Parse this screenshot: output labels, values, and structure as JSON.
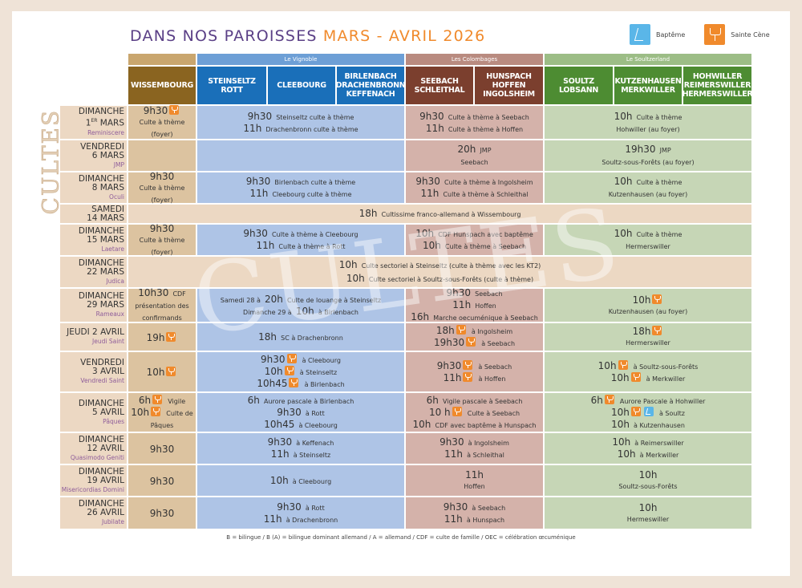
{
  "title": {
    "main": "DANS NOS PAROISSES",
    "accent": "MARS - AVRIL 2026"
  },
  "legend": {
    "bapteme": "Baptême",
    "sainte_cene": "Sainte Cène"
  },
  "side_label": "CULTES",
  "watermark": "CULTES",
  "colors": {
    "wissembourg": "#dcc3a0",
    "vignoble": "#aec4e6",
    "colombages": "#d4b2aa",
    "soultzerland": "#c6d6b6",
    "sainte_cene": "#f08a2c",
    "bapteme": "#5ab6e8"
  },
  "sectors": {
    "vignoble": "Le Vignoble",
    "colombages": "Les Colombages",
    "soultzerland": "Le Soultzerland"
  },
  "headers": [
    {
      "label": "WISSEMBOURG",
      "bg": "#8a6420"
    },
    {
      "label": "STEINSELTZ ROTT",
      "bg": "#1a6fb9"
    },
    {
      "label": "CLEEBOURG",
      "bg": "#1a6fb9"
    },
    {
      "label": "BIRLENBACH DRACHENBRONN KEFFENACH",
      "bg": "#1a6fb9"
    },
    {
      "label": "SEEBACH SCHLEITHAL",
      "bg": "#7b3f2e"
    },
    {
      "label": "HUNSPACH HOFFEN INGOLSHEIM",
      "bg": "#7b3f2e"
    },
    {
      "label": "SOULTZ LOBSANN",
      "bg": "#4d8c32"
    },
    {
      "label": "KUTZENHAUSEN MERKWILLER",
      "bg": "#4d8c32"
    },
    {
      "label": "HOHWILLER REIMERSWILLER HERMERSWILLER",
      "bg": "#4d8c32"
    }
  ],
  "rows": [
    {
      "day": "DIMANCHE",
      "date": "1",
      "sup": "ER",
      "date_rest": " MARS",
      "lit": "Reminiscere",
      "cells": {
        "w": [
          {
            "t": "9h30",
            "i": [
              "sc"
            ]
          },
          {
            "x": "Culte à thème"
          },
          {
            "x": "(foyer)"
          }
        ],
        "v": [
          {
            "t": "9h30",
            "x": "Steinseltz culte à thème"
          },
          {
            "t": "11h",
            "x": "Drachenbronn culte à thème"
          }
        ],
        "c": [
          {
            "t": "9h30",
            "x": "Culte à thème à Seebach"
          },
          {
            "t": "11h",
            "x": "Culte à thème à Hoffen"
          }
        ],
        "s": [
          {
            "t": "10h",
            "x": "Culte à thème"
          },
          {
            "x": "Hohwiller (au foyer)"
          }
        ]
      }
    },
    {
      "day": "VENDREDI",
      "date": "6 MARS",
      "lit": "JMP",
      "cells": {
        "w": [],
        "v": [],
        "c": [
          {
            "t": "20h",
            "x": "JMP"
          },
          {
            "x": "Seebach"
          }
        ],
        "s": [
          {
            "t": "19h30",
            "x": "JMP"
          },
          {
            "x": "Soultz-sous-Forêts (au foyer)"
          }
        ]
      }
    },
    {
      "day": "DIMANCHE",
      "date": "8 MARS",
      "lit": "Oculi",
      "cells": {
        "w": [
          {
            "t": "9h30"
          },
          {
            "x": "Culte à thème"
          },
          {
            "x": "(foyer)"
          }
        ],
        "v": [
          {
            "t": "9h30",
            "x": "Birlenbach culte à thème"
          },
          {
            "t": "11h",
            "x": "Cleebourg culte à thème"
          }
        ],
        "c": [
          {
            "t": "9h30",
            "x": "Culte à thème à Ingolsheim"
          },
          {
            "t": "11h",
            "x": "Culte à thème à Schleithal"
          }
        ],
        "s": [
          {
            "t": "10h",
            "x": "Culte à thème"
          },
          {
            "x": "Kutzenhausen (au foyer)"
          }
        ]
      }
    },
    {
      "day": "SAMEDI",
      "date": "14 MARS",
      "cells": {
        "all": [
          {
            "t": "18h",
            "x": "Cultissime franco-allemand à Wissembourg"
          }
        ]
      }
    },
    {
      "day": "DIMANCHE",
      "date": "15 MARS",
      "lit": "Laetare",
      "cells": {
        "w": [
          {
            "t": "9h30"
          },
          {
            "x": "Culte à thème"
          },
          {
            "x": "(foyer)"
          }
        ],
        "v": [
          {
            "t": "9h30",
            "x": "Culte à thème à Cleebourg"
          },
          {
            "t": "11h",
            "x": "Culte à thème à Rott"
          }
        ],
        "c": [
          {
            "t": "10h",
            "x": "CDF Hunspach avec baptême"
          },
          {
            "t": "10h",
            "x": "Culte à thème à Seebach"
          }
        ],
        "s": [
          {
            "t": "10h",
            "x": "Culte à thème"
          },
          {
            "x": "Hermerswiller"
          }
        ]
      }
    },
    {
      "day": "DIMANCHE",
      "date": "22 MARS",
      "lit": "Judica",
      "cells": {
        "all": [
          {
            "t": "10h",
            "x": "Culte sectoriel à Steinseltz (culte à thème avec les KT2)"
          },
          {
            "t": "10h",
            "x": "Culte sectoriel à Soultz-sous-Forêts (culte à thème)"
          }
        ]
      }
    },
    {
      "day": "DIMANCHE",
      "date": "29 MARS",
      "lit": "Rameaux",
      "cells": {
        "w": [
          {
            "t": "10h30",
            "x": "CDF"
          },
          {
            "x": "présentation des"
          },
          {
            "x": "confirmands"
          }
        ],
        "v": [
          {
            "p": "Samedi 28 à",
            "t": "20h",
            "x": "Culte de louange à Steinseltz"
          },
          {
            "p": "Dimanche 29 à",
            "t": "10h",
            "x": "à Birlenbach"
          }
        ],
        "c": [
          {
            "t": "9h30",
            "x": "Seebach"
          },
          {
            "t": "11h",
            "x": "Hoffen"
          },
          {
            "t": "16h",
            "x": "Marche oecuménique à Seebach"
          }
        ],
        "s": [
          {
            "t": "10h",
            "i": [
              "sc"
            ]
          },
          {
            "x": "Kutzenhausen (au foyer)"
          }
        ]
      }
    },
    {
      "day": "JEUDI 2 AVRIL",
      "date": "",
      "lit": "Jeudi Saint",
      "cells": {
        "w": [
          {
            "t": "19h",
            "i": [
              "sc"
            ]
          }
        ],
        "v": [
          {
            "t": "18h",
            "x": "SC à Drachenbronn"
          }
        ],
        "c": [
          {
            "t": "18h",
            "i": [
              "sc"
            ],
            "x": "à Ingolsheim"
          },
          {
            "t": "19h30",
            "i": [
              "sc"
            ],
            "x": "à Seebach"
          }
        ],
        "s": [
          {
            "t": "18h",
            "i": [
              "sc"
            ]
          },
          {
            "x": "Hermerswiller"
          }
        ]
      }
    },
    {
      "day": "VENDREDI",
      "date": "3 AVRIL",
      "lit": "Vendredi Saint",
      "cells": {
        "w": [
          {
            "t": "10h",
            "i": [
              "sc"
            ]
          }
        ],
        "v": [
          {
            "t": "9h30",
            "i": [
              "sc"
            ],
            "x": "à Cleebourg"
          },
          {
            "t": "10h",
            "i": [
              "sc"
            ],
            "x": "à Steinseltz"
          },
          {
            "t": "10h45",
            "i": [
              "sc"
            ],
            "x": "à Birlenbach"
          }
        ],
        "c": [
          {
            "t": "9h30",
            "i": [
              "sc"
            ],
            "x": "à Seebach"
          },
          {
            "t": "11h",
            "i": [
              "sc"
            ],
            "x": "à Hoffen"
          }
        ],
        "s": [
          {
            "t": "10h",
            "i": [
              "sc"
            ],
            "x": "à Soultz-sous-Forêts"
          },
          {
            "t": "10h",
            "i": [
              "sc"
            ],
            "x": "à Merkwiller"
          }
        ]
      }
    },
    {
      "day": "DIMANCHE",
      "date": "5 AVRIL",
      "lit": "Pâques",
      "cells": {
        "w": [
          {
            "t": "6h",
            "i": [
              "sc"
            ],
            "x": "Vigile"
          },
          {
            "t": "10h",
            "i": [
              "sc"
            ],
            "x": "Culte de"
          },
          {
            "x": "Pâques"
          }
        ],
        "v": [
          {
            "t": "6h",
            "x": "Aurore pascale à Birlenbach"
          },
          {
            "t": "9h30",
            "x": "à Rott"
          },
          {
            "t": "10h45",
            "x": "à Cleebourg"
          }
        ],
        "c": [
          {
            "t": "6h",
            "x": "Vigile pascale à Seebach"
          },
          {
            "t": "10 h",
            "i": [
              "sc"
            ],
            "x": "Culte à Seebach"
          },
          {
            "t": "10h",
            "x": "CDF avec baptême à Hunspach"
          }
        ],
        "s": [
          {
            "t": "6h",
            "i": [
              "sc"
            ],
            "x": "Aurore Pascale à Hohwiller"
          },
          {
            "t": "10h",
            "i": [
              "sc",
              "bap"
            ],
            "x": "à Soultz"
          },
          {
            "t": "10h",
            "x": "à Kutzenhausen"
          }
        ]
      }
    },
    {
      "day": "DIMANCHE",
      "date": "12 AVRIL",
      "lit": "Quasimodo Geniti",
      "cells": {
        "w": [
          {
            "t": "9h30"
          }
        ],
        "v": [
          {
            "t": "9h30",
            "x": "à Keffenach"
          },
          {
            "t": "11h",
            "x": "à Steinseltz"
          }
        ],
        "c": [
          {
            "t": "9h30",
            "x": "à Ingolsheim"
          },
          {
            "t": "11h",
            "x": "à Schleithal"
          }
        ],
        "s": [
          {
            "t": "10h",
            "x": "à Reimerswiller"
          },
          {
            "t": "10h",
            "x": "à Merkwiller"
          }
        ]
      }
    },
    {
      "day": "DIMANCHE",
      "date": "19 AVRIL",
      "lit": "Misericordias Domini",
      "cells": {
        "w": [
          {
            "t": "9h30"
          }
        ],
        "v": [
          {
            "t": "10h",
            "x": "à Cleebourg"
          }
        ],
        "c": [
          {
            "t": "11h"
          },
          {
            "x": "Hoffen"
          }
        ],
        "s": [
          {
            "t": "10h"
          },
          {
            "x": "Soultz-sous-Forêts"
          }
        ]
      }
    },
    {
      "day": "DIMANCHE",
      "date": "26 AVRIL",
      "lit": "Jubilate",
      "cells": {
        "w": [
          {
            "t": "9h30"
          }
        ],
        "v": [
          {
            "t": "9h30",
            "x": "à Rott"
          },
          {
            "t": "11h",
            "x": "à Drachenbronn"
          }
        ],
        "c": [
          {
            "t": "9h30",
            "x": "à Seebach"
          },
          {
            "t": "11h",
            "x": "à Hunspach"
          }
        ],
        "s": [
          {
            "t": "10h"
          },
          {
            "x": "Hermeswiller"
          }
        ]
      }
    }
  ],
  "footnote": "B = bilingue / B (A) = bilingue dominant allemand / A = allemand / CDF = culte de famille / OEC = célébration œcuménique"
}
